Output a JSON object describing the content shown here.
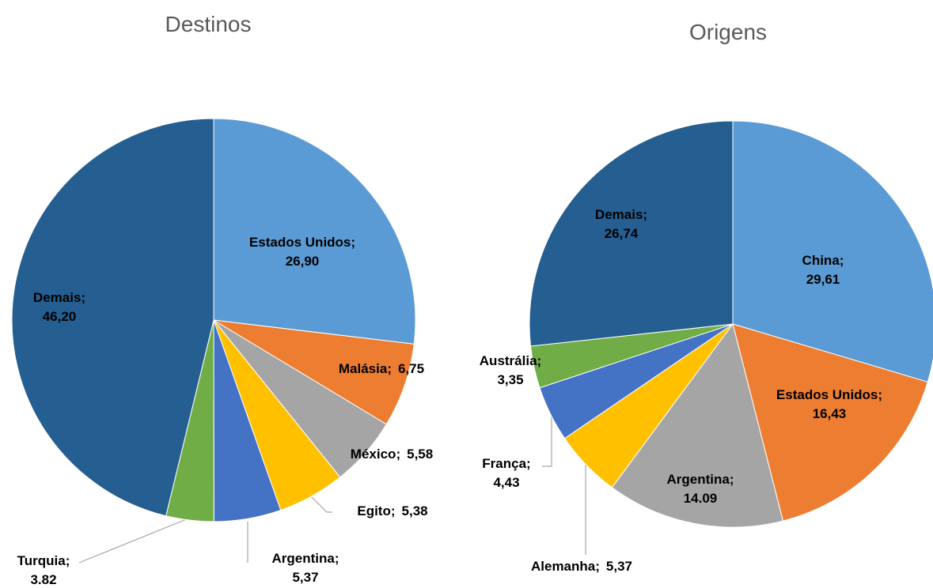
{
  "chart_data": [
    {
      "type": "pie",
      "title": "Destinos",
      "label_separator": ";",
      "categories": [
        "Estados Unidos",
        "Malásia",
        "México",
        "Egito",
        "Argentina",
        "Turquia",
        "Demais"
      ],
      "values": [
        26.9,
        6.75,
        5.58,
        5.38,
        5.37,
        3.82,
        46.2
      ],
      "value_labels": [
        "26,90",
        "6,75",
        "5,58",
        "5,38",
        "5,37",
        "3.82",
        "46,20"
      ],
      "colors": [
        "#5b9bd5",
        "#ed7d31",
        "#a5a5a5",
        "#ffc000",
        "#4472c4",
        "#70ad47",
        "#255e91"
      ]
    },
    {
      "type": "pie",
      "title": "Origens",
      "label_separator": ";",
      "categories": [
        "China",
        "Estados Unidos",
        "Argentina",
        "Alemanha",
        "França",
        "Austrália",
        "Demais"
      ],
      "values": [
        29.61,
        16.43,
        14.09,
        5.37,
        4.43,
        3.35,
        26.74
      ],
      "value_labels": [
        "29,61",
        "16,43",
        "14.09",
        "5,37",
        "4,43",
        "3,35",
        "26,74"
      ],
      "colors": [
        "#5b9bd5",
        "#ed7d31",
        "#a5a5a5",
        "#ffc000",
        "#4472c4",
        "#70ad47",
        "#255e91"
      ]
    }
  ]
}
